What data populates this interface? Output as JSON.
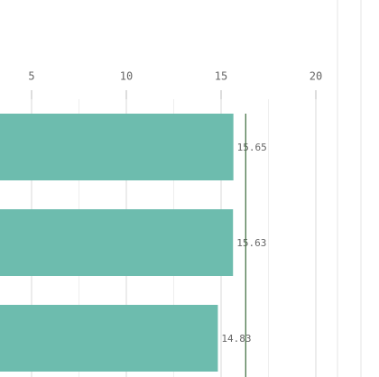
{
  "chart_data": {
    "type": "hbar",
    "categories": [
      null,
      null,
      null
    ],
    "values": [
      15.65,
      15.63,
      14.83
    ],
    "color": "#6dbcae",
    "xlim": [
      0,
      20
    ],
    "xticks": [
      5,
      10,
      15,
      20
    ],
    "minor_xticks": [
      7.5,
      12.5,
      17.5
    ],
    "reference_line": 16.3,
    "reference_color": "#3d6b3d",
    "grid": true
  }
}
